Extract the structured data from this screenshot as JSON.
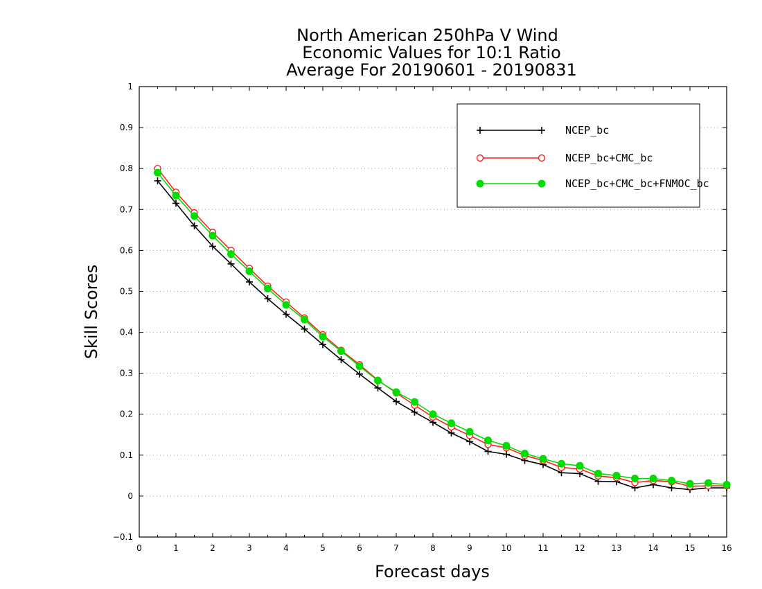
{
  "chart_data": {
    "type": "line",
    "title": [
      "North American 250hPa V Wind",
      "Economic Values for 10:1 Ratio",
      "Average For 20190601 - 20190831"
    ],
    "xlabel": "Forecast days",
    "ylabel": "Skill Scores",
    "xlim": [
      0,
      16
    ],
    "ylim": [
      -0.1,
      1
    ],
    "xticks": [
      "0",
      "1",
      "2",
      "3",
      "4",
      "5",
      "6",
      "7",
      "8",
      "9",
      "10",
      "11",
      "12",
      "13",
      "14",
      "15",
      "16"
    ],
    "yticks": [
      "−0.1",
      "0",
      "0.1",
      "0.2",
      "0.3",
      "0.4",
      "0.5",
      "0.6",
      "0.7",
      "0.8",
      "0.9",
      "1"
    ],
    "grid": "horizontal dotted",
    "legend_position": "top-right",
    "x": [
      0.5,
      1,
      1.5,
      2,
      2.5,
      3,
      3.5,
      4,
      4.5,
      5,
      5.5,
      6,
      6.5,
      7,
      7.5,
      8,
      8.5,
      9,
      9.5,
      10,
      10.5,
      11,
      11.5,
      12,
      12.5,
      13,
      13.5,
      14,
      14.5,
      15,
      15.5,
      16
    ],
    "series": [
      {
        "name": "NCEP_bc",
        "color": "#000000",
        "marker": "plus",
        "values": [
          0.77,
          0.715,
          0.66,
          0.61,
          0.567,
          0.523,
          0.482,
          0.444,
          0.408,
          0.37,
          0.333,
          0.298,
          0.264,
          0.231,
          0.205,
          0.18,
          0.154,
          0.133,
          0.109,
          0.102,
          0.087,
          0.077,
          0.057,
          0.055,
          0.036,
          0.035,
          0.02,
          0.028,
          0.02,
          0.016,
          0.02,
          0.02
        ]
      },
      {
        "name": "NCEP_bc+CMC_bc",
        "color": "#ff2020",
        "marker": "open-circle",
        "values": [
          0.8,
          0.742,
          0.692,
          0.644,
          0.6,
          0.556,
          0.513,
          0.474,
          0.435,
          0.394,
          0.356,
          0.321,
          0.283,
          0.252,
          0.222,
          0.193,
          0.169,
          0.148,
          0.126,
          0.118,
          0.099,
          0.087,
          0.07,
          0.066,
          0.049,
          0.045,
          0.033,
          0.038,
          0.035,
          0.024,
          0.025,
          0.025
        ]
      },
      {
        "name": "NCEP_bc+CMC_bc+FNMOC_bc",
        "color": "#00dd00",
        "marker": "filled-circle",
        "values": [
          0.79,
          0.734,
          0.684,
          0.636,
          0.591,
          0.549,
          0.507,
          0.467,
          0.431,
          0.389,
          0.354,
          0.317,
          0.282,
          0.254,
          0.23,
          0.2,
          0.178,
          0.157,
          0.136,
          0.123,
          0.104,
          0.091,
          0.079,
          0.074,
          0.055,
          0.05,
          0.043,
          0.043,
          0.038,
          0.03,
          0.032,
          0.028
        ]
      }
    ]
  }
}
